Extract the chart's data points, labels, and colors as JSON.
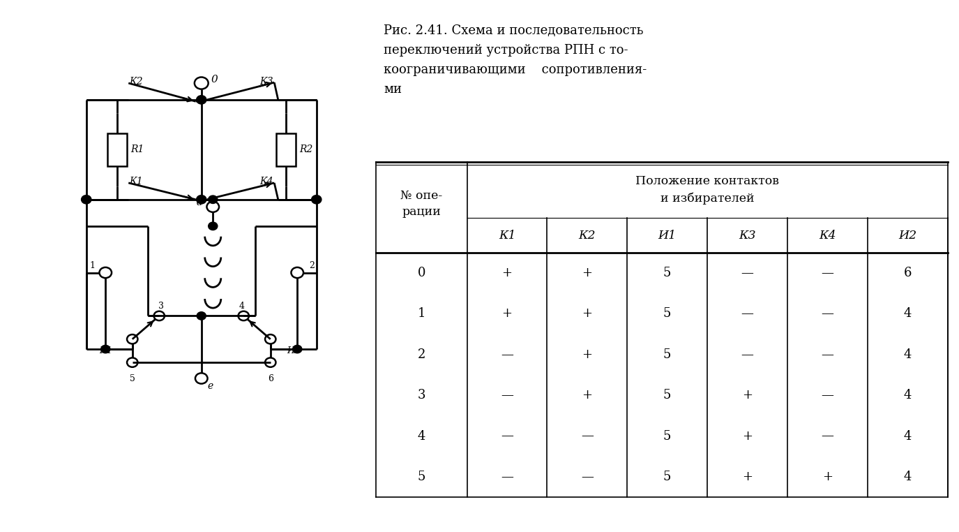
{
  "title_line1": "Рис. 2.41. Схема и последовательность",
  "title_line2": "переключений устройства РПН с то-",
  "title_line3": "коограничивающими    сопротивления-",
  "title_line4": "ми",
  "table_header1": "Положение контактов",
  "table_header2": "и избирателей",
  "col_header0": "№ опе-\nрации",
  "col_headers": [
    "К1",
    "К2",
    "И1",
    "К3",
    "К4",
    "И2"
  ],
  "rows": [
    [
      "0",
      "+",
      "+",
      "5",
      "—",
      "—",
      "6"
    ],
    [
      "1",
      "+",
      "+",
      "5",
      "—",
      "—",
      "4"
    ],
    [
      "2",
      "—",
      "+",
      "5",
      "—",
      "—",
      "4"
    ],
    [
      "3",
      "—",
      "+",
      "5",
      "+",
      "—",
      "4"
    ],
    [
      "4",
      "—",
      "—",
      "5",
      "+",
      "—",
      "4"
    ],
    [
      "5",
      "—",
      "—",
      "5",
      "+",
      "+",
      "4"
    ]
  ],
  "bg_color": "#ffffff",
  "text_color": "#000000"
}
